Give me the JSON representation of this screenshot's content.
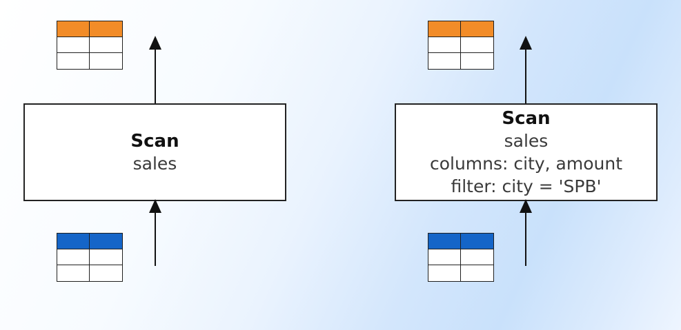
{
  "colors": {
    "output_header": "#f28c28",
    "input_header": "#1565c8",
    "stroke": "#1f1f1f",
    "box_fill": "#ffffff"
  },
  "diagrams": [
    {
      "node": {
        "title": "Scan",
        "lines": [
          "sales"
        ]
      },
      "output_table": {
        "header_color": "#f28c28",
        "columns": 2,
        "rows": 3
      },
      "input_table": {
        "header_color": "#1565c8",
        "columns": 2,
        "rows": 3
      }
    },
    {
      "node": {
        "title": "Scan",
        "lines": [
          "sales",
          "columns: city, amount",
          "filter: city = 'SPB'"
        ]
      },
      "output_table": {
        "header_color": "#f28c28",
        "columns": 2,
        "rows": 3
      },
      "input_table": {
        "header_color": "#1565c8",
        "columns": 2,
        "rows": 3
      }
    }
  ]
}
